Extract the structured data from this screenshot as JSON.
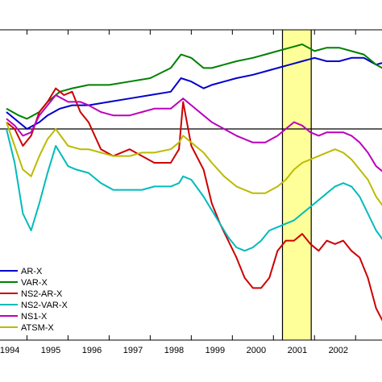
{
  "chart_data": {
    "type": "line",
    "x_unit": "year",
    "x_ticks": [
      {
        "value": 1994,
        "label": "1994"
      },
      {
        "value": 1995,
        "label": "1995"
      },
      {
        "value": 1996,
        "label": "1996"
      },
      {
        "value": 1997,
        "label": "1997"
      },
      {
        "value": 1998,
        "label": "1998"
      },
      {
        "value": 1999,
        "label": "1999"
      },
      {
        "value": 2000,
        "label": "2000"
      },
      {
        "value": 2001,
        "label": "2001"
      },
      {
        "value": 2002,
        "label": "2002"
      }
    ],
    "xlim": [
      1994.0,
      2003.3
    ],
    "ylim": [
      -1.0,
      1.0
    ],
    "y_tick_labels_visible": false,
    "grid": false,
    "legend_position": "bottom-left",
    "reference_line_y": 0.0,
    "highlight_band": {
      "x_start": 2000.72,
      "x_end": 2001.42,
      "color": "#ffff99",
      "edge_color": "#000000"
    },
    "series": [
      {
        "name": "AR-X",
        "color": "#0000cc",
        "x": [
          1994.0,
          1994.3,
          1994.5,
          1994.8,
          1995.0,
          1995.3,
          1995.6,
          1996.0,
          1996.5,
          1997.0,
          1997.5,
          1998.0,
          1998.25,
          1998.5,
          1998.8,
          1999.0,
          1999.3,
          1999.6,
          2000.0,
          2000.3,
          2000.6,
          2000.9,
          2001.2,
          2001.5,
          2001.8,
          2002.1,
          2002.4,
          2002.7,
          2003.0,
          2003.3
        ],
        "y": [
          0.05,
          0.02,
          0.0,
          0.02,
          0.04,
          0.06,
          0.07,
          0.07,
          0.08,
          0.09,
          0.1,
          0.11,
          0.15,
          0.14,
          0.12,
          0.13,
          0.14,
          0.15,
          0.16,
          0.17,
          0.18,
          0.19,
          0.2,
          0.21,
          0.2,
          0.2,
          0.21,
          0.21,
          0.19,
          0.2
        ]
      },
      {
        "name": "VAR-X",
        "color": "#008000",
        "x": [
          1994.0,
          1994.3,
          1994.5,
          1994.8,
          1995.0,
          1995.3,
          1995.6,
          1996.0,
          1996.5,
          1997.0,
          1997.5,
          1998.0,
          1998.25,
          1998.5,
          1998.8,
          1999.0,
          1999.3,
          1999.6,
          2000.0,
          2000.3,
          2000.6,
          2000.9,
          2001.2,
          2001.5,
          2001.8,
          2002.1,
          2002.4,
          2002.7,
          2003.0,
          2003.3
        ],
        "y": [
          0.06,
          0.04,
          0.03,
          0.05,
          0.08,
          0.11,
          0.12,
          0.13,
          0.13,
          0.14,
          0.15,
          0.18,
          0.22,
          0.21,
          0.18,
          0.18,
          0.19,
          0.2,
          0.21,
          0.22,
          0.23,
          0.24,
          0.25,
          0.23,
          0.24,
          0.24,
          0.23,
          0.22,
          0.19,
          0.17
        ]
      },
      {
        "name": "NS2-AR-X",
        "color": "#cc0000",
        "x": [
          1994.0,
          1994.2,
          1994.4,
          1994.6,
          1994.8,
          1995.0,
          1995.2,
          1995.4,
          1995.6,
          1995.8,
          1996.0,
          1996.3,
          1996.6,
          1997.0,
          1997.3,
          1997.6,
          1998.0,
          1998.2,
          1998.3,
          1998.5,
          1998.8,
          1999.0,
          1999.2,
          1999.4,
          1999.6,
          1999.8,
          2000.0,
          2000.2,
          2000.4,
          2000.6,
          2000.8,
          2001.0,
          2001.2,
          2001.4,
          2001.6,
          2001.8,
          2002.0,
          2002.2,
          2002.4,
          2002.6,
          2002.8,
          2003.0,
          2003.3
        ],
        "y": [
          0.02,
          0.0,
          -0.05,
          -0.02,
          0.05,
          0.08,
          0.12,
          0.1,
          0.11,
          0.05,
          0.02,
          -0.06,
          -0.08,
          -0.06,
          -0.08,
          -0.1,
          -0.1,
          -0.06,
          0.08,
          -0.05,
          -0.12,
          -0.22,
          -0.28,
          -0.33,
          -0.38,
          -0.44,
          -0.47,
          -0.47,
          -0.44,
          -0.36,
          -0.33,
          -0.33,
          -0.31,
          -0.34,
          -0.36,
          -0.33,
          -0.34,
          -0.33,
          -0.36,
          -0.38,
          -0.44,
          -0.53,
          -0.6
        ]
      },
      {
        "name": "NS2-VAR-X",
        "color": "#00bbbb",
        "x": [
          1994.0,
          1994.2,
          1994.4,
          1994.6,
          1994.8,
          1995.0,
          1995.2,
          1995.5,
          1995.7,
          1996.0,
          1996.3,
          1996.6,
          1997.0,
          1997.3,
          1997.6,
          1998.0,
          1998.2,
          1998.3,
          1998.5,
          1998.8,
          1999.0,
          1999.2,
          1999.4,
          1999.6,
          1999.8,
          2000.0,
          2000.2,
          2000.4,
          2000.6,
          2000.8,
          2001.0,
          2001.2,
          2001.4,
          2001.6,
          2001.8,
          2002.0,
          2002.2,
          2002.4,
          2002.6,
          2002.8,
          2003.0,
          2003.3
        ],
        "y": [
          0.0,
          -0.1,
          -0.25,
          -0.3,
          -0.22,
          -0.13,
          -0.05,
          -0.11,
          -0.12,
          -0.13,
          -0.16,
          -0.18,
          -0.18,
          -0.18,
          -0.17,
          -0.17,
          -0.16,
          -0.14,
          -0.15,
          -0.2,
          -0.24,
          -0.28,
          -0.32,
          -0.35,
          -0.36,
          -0.35,
          -0.33,
          -0.3,
          -0.29,
          -0.28,
          -0.27,
          -0.25,
          -0.23,
          -0.21,
          -0.19,
          -0.17,
          -0.16,
          -0.17,
          -0.2,
          -0.25,
          -0.3,
          -0.35
        ]
      },
      {
        "name": "NS1-X",
        "color": "#bb00bb",
        "x": [
          1994.0,
          1994.2,
          1994.4,
          1994.6,
          1994.8,
          1995.0,
          1995.2,
          1995.5,
          1995.8,
          1996.0,
          1996.3,
          1996.6,
          1997.0,
          1997.3,
          1997.6,
          1998.0,
          1998.2,
          1998.3,
          1998.5,
          1998.8,
          1999.0,
          1999.3,
          1999.6,
          2000.0,
          2000.3,
          2000.6,
          2000.8,
          2001.0,
          2001.2,
          2001.4,
          2001.6,
          2001.8,
          2002.0,
          2002.2,
          2002.4,
          2002.6,
          2002.8,
          2003.0,
          2003.3
        ],
        "y": [
          0.03,
          0.01,
          -0.02,
          -0.01,
          0.04,
          0.07,
          0.1,
          0.08,
          0.08,
          0.07,
          0.05,
          0.04,
          0.04,
          0.05,
          0.06,
          0.06,
          0.08,
          0.09,
          0.07,
          0.04,
          0.02,
          0.0,
          -0.02,
          -0.04,
          -0.04,
          -0.02,
          0.0,
          0.02,
          0.01,
          -0.01,
          -0.02,
          -0.01,
          -0.01,
          -0.01,
          -0.02,
          -0.04,
          -0.07,
          -0.11,
          -0.14
        ]
      },
      {
        "name": "ATSM-X",
        "color": "#bbbb00",
        "x": [
          1994.0,
          1994.2,
          1994.4,
          1994.6,
          1994.8,
          1995.0,
          1995.2,
          1995.5,
          1995.8,
          1996.0,
          1996.3,
          1996.6,
          1997.0,
          1997.3,
          1997.6,
          1998.0,
          1998.2,
          1998.3,
          1998.5,
          1998.8,
          1999.0,
          1999.3,
          1999.6,
          2000.0,
          2000.3,
          2000.6,
          2000.8,
          2001.0,
          2001.2,
          2001.4,
          2001.6,
          2001.8,
          2002.0,
          2002.2,
          2002.4,
          2002.6,
          2002.8,
          2003.0,
          2003.3
        ],
        "y": [
          0.02,
          -0.05,
          -0.12,
          -0.14,
          -0.08,
          -0.03,
          0.0,
          -0.05,
          -0.06,
          -0.06,
          -0.07,
          -0.08,
          -0.08,
          -0.07,
          -0.07,
          -0.06,
          -0.04,
          -0.02,
          -0.04,
          -0.07,
          -0.1,
          -0.14,
          -0.17,
          -0.19,
          -0.19,
          -0.17,
          -0.15,
          -0.12,
          -0.1,
          -0.09,
          -0.08,
          -0.07,
          -0.06,
          -0.07,
          -0.09,
          -0.12,
          -0.15,
          -0.2,
          -0.25
        ]
      }
    ]
  }
}
